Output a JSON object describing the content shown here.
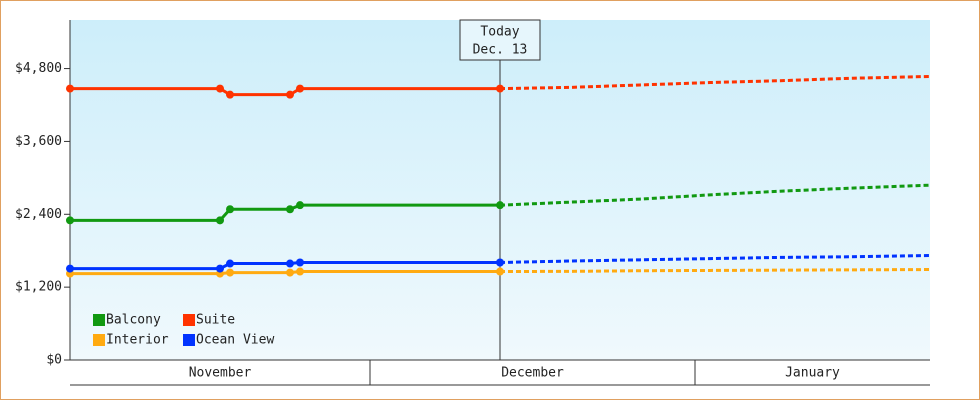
{
  "chart_data": {
    "type": "line",
    "x": [
      0,
      15,
      16,
      22,
      23,
      43
    ],
    "forecast_x": [
      43,
      50,
      57,
      64,
      71,
      78,
      86
    ],
    "xlim": [
      0,
      86
    ],
    "months": [
      {
        "label": "November",
        "start": 0,
        "end": 30
      },
      {
        "label": "December",
        "start": 30,
        "end": 62.5
      },
      {
        "label": "January",
        "start": 62.5,
        "end": 86
      }
    ],
    "ylim": [
      0,
      5600
    ],
    "yticks": [
      {
        "value": 0,
        "label": "$0"
      },
      {
        "value": 1200,
        "label": "$1,200"
      },
      {
        "value": 2400,
        "label": "$2,400"
      },
      {
        "value": 3600,
        "label": "$3,600"
      },
      {
        "value": 4800,
        "label": "$4,800"
      }
    ],
    "today": {
      "x": 43,
      "label": "Today",
      "date": "Dec. 13"
    },
    "series": [
      {
        "name": "Balcony",
        "color": "#119911",
        "values": [
          2300,
          2300,
          2483,
          2483,
          2550,
          2550
        ],
        "forecast_values": [
          2550,
          2600,
          2650,
          2720,
          2780,
          2830,
          2880
        ]
      },
      {
        "name": "Suite",
        "color": "#ff3300",
        "values": [
          4470,
          4470,
          4370,
          4370,
          4470,
          4470
        ],
        "forecast_values": [
          4470,
          4490,
          4530,
          4570,
          4600,
          4640,
          4670
        ]
      },
      {
        "name": "Interior",
        "color": "#ffaa11",
        "values": [
          1423,
          1423,
          1440,
          1440,
          1457,
          1457
        ],
        "forecast_values": [
          1457,
          1460,
          1470,
          1475,
          1480,
          1485,
          1490
        ]
      },
      {
        "name": "Ocean View",
        "color": "#0033ff",
        "values": [
          1506,
          1506,
          1589,
          1589,
          1606,
          1606
        ],
        "forecast_values": [
          1606,
          1630,
          1650,
          1670,
          1690,
          1700,
          1721
        ]
      }
    ]
  }
}
